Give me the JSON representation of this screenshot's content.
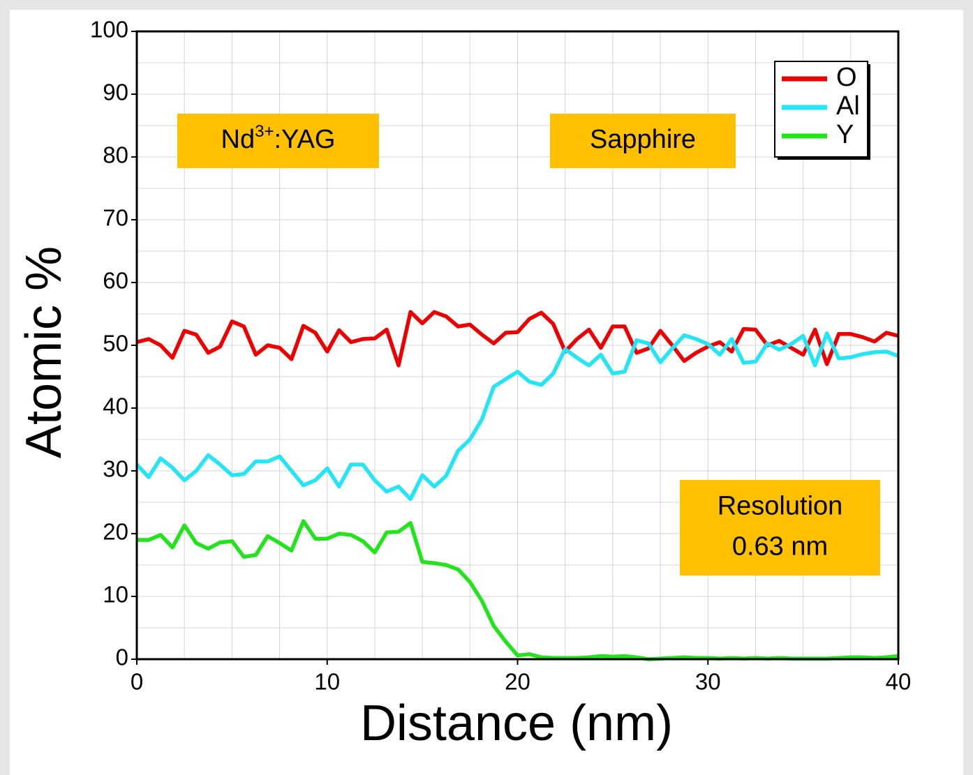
{
  "chart_data": {
    "type": "line",
    "xlabel": "Distance (nm)",
    "ylabel": "Atomic %",
    "x": [
      0,
      0.625,
      1.25,
      1.875,
      2.5,
      3.125,
      3.75,
      4.375,
      5,
      5.625,
      6.25,
      6.875,
      7.5,
      8.125,
      8.75,
      9.375,
      10,
      10.625,
      11.25,
      11.875,
      12.5,
      13.125,
      13.75,
      14.375,
      15,
      15.625,
      16.25,
      16.875,
      17.5,
      18.125,
      18.75,
      19.375,
      20,
      20.625,
      21.25,
      21.875,
      22.5,
      23.125,
      23.75,
      24.375,
      25,
      25.625,
      26.25,
      26.875,
      27.5,
      28.125,
      28.75,
      29.375,
      30,
      30.625,
      31.25,
      31.875,
      32.5,
      33.125,
      33.75,
      34.375,
      35,
      35.625,
      36.25,
      36.875,
      37.5,
      38.125,
      38.75,
      39.375,
      40
    ],
    "series": [
      {
        "name": "O",
        "color": "#ee0000",
        "values": [
          50.5,
          51,
          50,
          48,
          52.3,
          51.7,
          48.8,
          49.8,
          53.8,
          53,
          48.5,
          50,
          49.6,
          47.8,
          53.1,
          52,
          49,
          52.4,
          50.5,
          51,
          51.1,
          52.5,
          46.8,
          55.3,
          53.5,
          55.3,
          54.6,
          53,
          53.3,
          51.7,
          50.3,
          52,
          52.1,
          54.2,
          55.2,
          53.4,
          49,
          51,
          52.5,
          49.6,
          53,
          53,
          48.8,
          49.5,
          52.3,
          50,
          47.5,
          48.8,
          49.8,
          50.5,
          49,
          52.6,
          52.5,
          50,
          50.7,
          49.6,
          48.5,
          52.5,
          47,
          51.8,
          51.8,
          51.3,
          50.6,
          52,
          51.5
        ]
      },
      {
        "name": "Al",
        "color": "#22e5f5",
        "values": [
          31,
          29,
          32,
          30.5,
          28.5,
          30,
          32.5,
          31,
          29.3,
          29.5,
          31.5,
          31.5,
          32.3,
          30,
          27.7,
          28.5,
          30.4,
          27.5,
          31,
          31,
          28.5,
          26.7,
          27.5,
          25.5,
          29.3,
          27.5,
          29.2,
          33.2,
          35,
          38.2,
          43.4,
          44.6,
          45.8,
          44.2,
          43.7,
          45.5,
          49.4,
          48,
          46.8,
          48.5,
          45.5,
          45.8,
          50.8,
          50.3,
          47.3,
          49.5,
          51.6,
          51,
          50.2,
          48.5,
          51,
          47.2,
          47.4,
          50.3,
          49.3,
          50.2,
          51.5,
          46.8,
          51.9,
          47.9,
          48.1,
          48.6,
          48.9,
          49,
          48.3
        ]
      },
      {
        "name": "Y",
        "color": "#22e41a",
        "values": [
          19,
          19,
          19.8,
          17.8,
          21.3,
          18.5,
          17.6,
          18.6,
          18.8,
          16.3,
          16.6,
          19.6,
          18.5,
          17.3,
          22,
          19.2,
          19.2,
          20,
          19.8,
          18.8,
          17,
          20.2,
          20.3,
          21.7,
          15.5,
          15.3,
          15,
          14.3,
          12.3,
          9.3,
          5.3,
          2.8,
          0.6,
          0.8,
          0.3,
          0.2,
          0.2,
          0.2,
          0.3,
          0.5,
          0.4,
          0.5,
          0.3,
          0,
          0.1,
          0.2,
          0.3,
          0.2,
          0.2,
          0.1,
          0.2,
          0.1,
          0.2,
          0.1,
          0.2,
          0.1,
          0.1,
          0.1,
          0.1,
          0.2,
          0.3,
          0.3,
          0.2,
          0.3,
          0.5
        ]
      }
    ],
    "xlim": [
      0,
      40
    ],
    "xticks": [
      0,
      10,
      20,
      30,
      40
    ],
    "ylim": [
      0,
      100
    ],
    "yticks": [
      0,
      10,
      20,
      30,
      40,
      50,
      60,
      70,
      80,
      90,
      100
    ],
    "grid": true,
    "legend": "upper right",
    "annotations": [
      {
        "color": "#ffc000",
        "lines": [
          [
            "Nd",
            "3+",
            ":YAG"
          ]
        ]
      },
      {
        "color": "#ffc000",
        "lines": [
          [
            "Sapphire"
          ]
        ]
      },
      {
        "color": "#ffc000",
        "lines": [
          [
            "Resolution"
          ],
          [
            "0.63 nm"
          ]
        ]
      }
    ]
  }
}
